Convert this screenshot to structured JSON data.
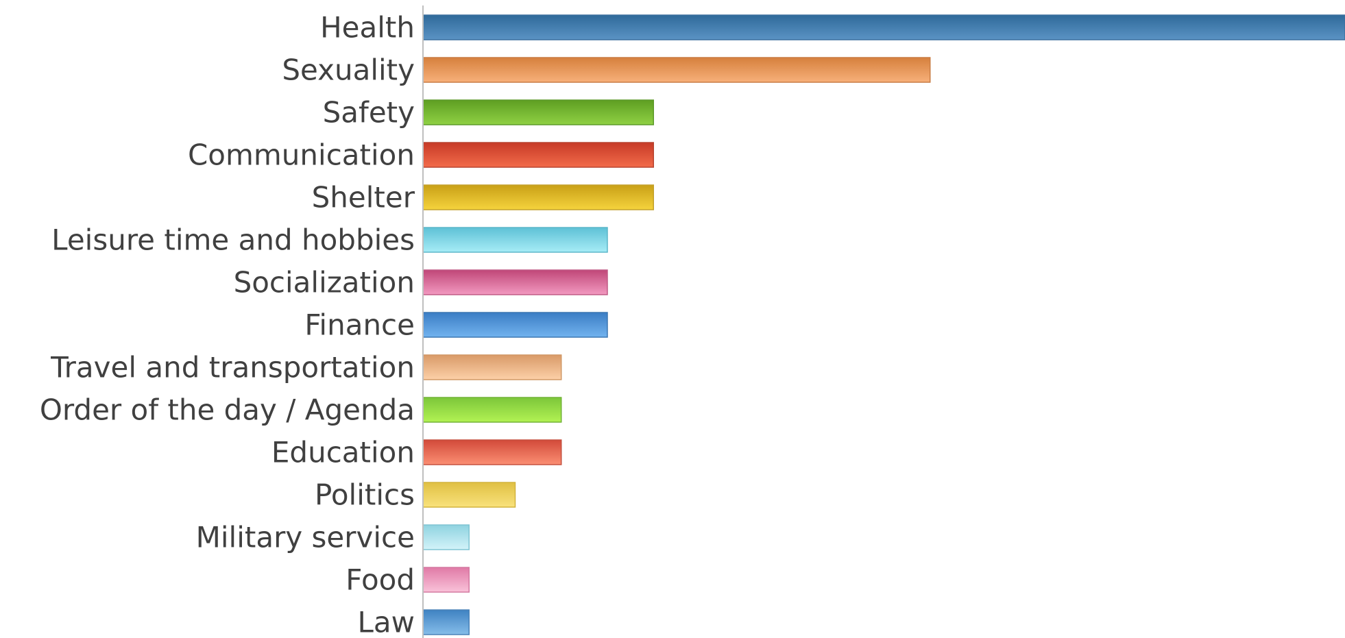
{
  "chart_data": {
    "type": "bar",
    "orientation": "horizontal",
    "title": "",
    "xlabel": "",
    "ylabel": "",
    "categories": [
      "Health",
      "Sexuality",
      "Safety",
      "Communication",
      "Shelter",
      "Leisure time and hobbies",
      "Socialization",
      "Finance",
      "Travel and transportation",
      "Order of the day / Agenda",
      "Education",
      "Politics",
      "Military service",
      "Food",
      "Law"
    ],
    "values": [
      20,
      11,
      5,
      5,
      5,
      4,
      4,
      4,
      3,
      3,
      3,
      2,
      1,
      1,
      1
    ],
    "xlim": [
      0,
      20
    ],
    "grid": false,
    "legend": "none",
    "bar_colors": [
      {
        "top": "#2f6a9a",
        "bottom": "#5b93c4",
        "stroke": "#3a6f9e"
      },
      {
        "top": "#d6803d",
        "bottom": "#f7b07a",
        "stroke": "#c97c43"
      },
      {
        "top": "#5e9e22",
        "bottom": "#8fd144",
        "stroke": "#5d9a2a"
      },
      {
        "top": "#c73a26",
        "bottom": "#f26b4a",
        "stroke": "#b84430"
      },
      {
        "top": "#c9a017",
        "bottom": "#f5d33d",
        "stroke": "#c3a12a"
      },
      {
        "top": "#5ec1d6",
        "bottom": "#a7ecf6",
        "stroke": "#5bb6c9"
      },
      {
        "top": "#c04778",
        "bottom": "#f299c0",
        "stroke": "#c05a86"
      },
      {
        "top": "#3b7dc4",
        "bottom": "#72b3ef",
        "stroke": "#3b76b2"
      },
      {
        "top": "#d99a68",
        "bottom": "#fcd0a8",
        "stroke": "#d19866"
      },
      {
        "top": "#7cc63a",
        "bottom": "#b2f253",
        "stroke": "#72b336"
      },
      {
        "top": "#d24a3a",
        "bottom": "#fb8f73",
        "stroke": "#c5503f"
      },
      {
        "top": "#e0c043",
        "bottom": "#f9e27c",
        "stroke": "#d2b33d"
      },
      {
        "top": "#8fd3e0",
        "bottom": "#d3f3f9",
        "stroke": "#7fc4d2"
      },
      {
        "top": "#e07aa6",
        "bottom": "#f9c2d9",
        "stroke": "#d479a1"
      },
      {
        "top": "#3f82c2",
        "bottom": "#86bde9",
        "stroke": "#4a82b8"
      }
    ],
    "axis_color": "#bfbfbf",
    "label_color": "#404040"
  }
}
